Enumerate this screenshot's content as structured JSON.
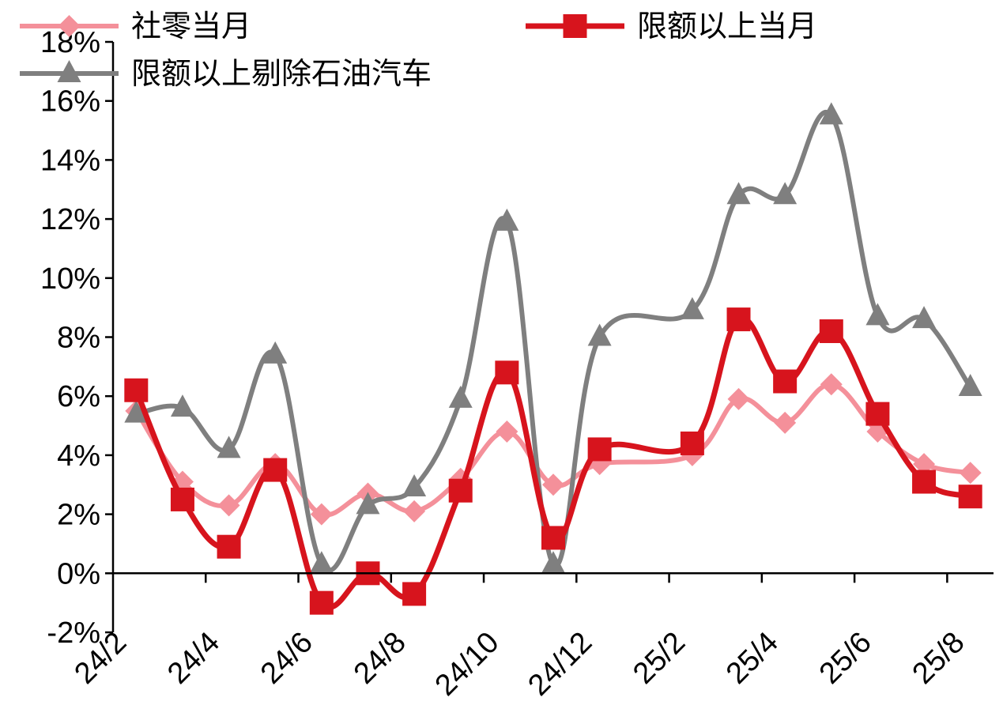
{
  "chart_data": {
    "type": "line",
    "x": [
      "24/2",
      "24/3",
      "24/4",
      "24/5",
      "24/6",
      "24/7",
      "24/8",
      "24/9",
      "24/10",
      "24/11",
      "24/12",
      "25/1",
      "25/2",
      "25/3",
      "25/4",
      "25/5",
      "25/6",
      "25/7",
      "25/8"
    ],
    "x_tick_labels": [
      "24/2",
      "24/4",
      "24/6",
      "24/8",
      "24/10",
      "24/12",
      "25/2",
      "25/4",
      "25/6",
      "25/8"
    ],
    "y_tick_labels": [
      "-2%",
      "0%",
      "2%",
      "4%",
      "6%",
      "8%",
      "10%",
      "12%",
      "14%",
      "16%",
      "18%"
    ],
    "ylim": [
      -2,
      18
    ],
    "y_unit": "%",
    "legend_position": "top",
    "grid": false,
    "series": [
      {
        "name": "社零当月",
        "color": "#f4909a",
        "marker": "diamond",
        "values": [
          5.5,
          3.1,
          2.3,
          3.7,
          2.0,
          2.7,
          2.1,
          3.2,
          4.8,
          3.0,
          3.7,
          null,
          4.0,
          5.9,
          5.1,
          6.4,
          4.8,
          3.7,
          3.4
        ]
      },
      {
        "name": "限额以上当月",
        "color": "#d7141d",
        "marker": "square",
        "values": [
          6.2,
          2.5,
          0.9,
          3.5,
          -1.0,
          0.0,
          -0.7,
          2.8,
          6.8,
          1.2,
          4.2,
          null,
          4.4,
          8.6,
          6.5,
          8.2,
          5.4,
          3.1,
          2.6
        ]
      },
      {
        "name": "限额以上剔除石油汽车",
        "color": "#7f7f7f",
        "marker": "triangle",
        "values": [
          5.4,
          5.6,
          4.2,
          7.4,
          0.3,
          2.3,
          2.9,
          5.9,
          11.9,
          0.3,
          8.0,
          null,
          8.9,
          12.8,
          12.8,
          15.5,
          8.7,
          8.6,
          6.3
        ]
      }
    ]
  }
}
